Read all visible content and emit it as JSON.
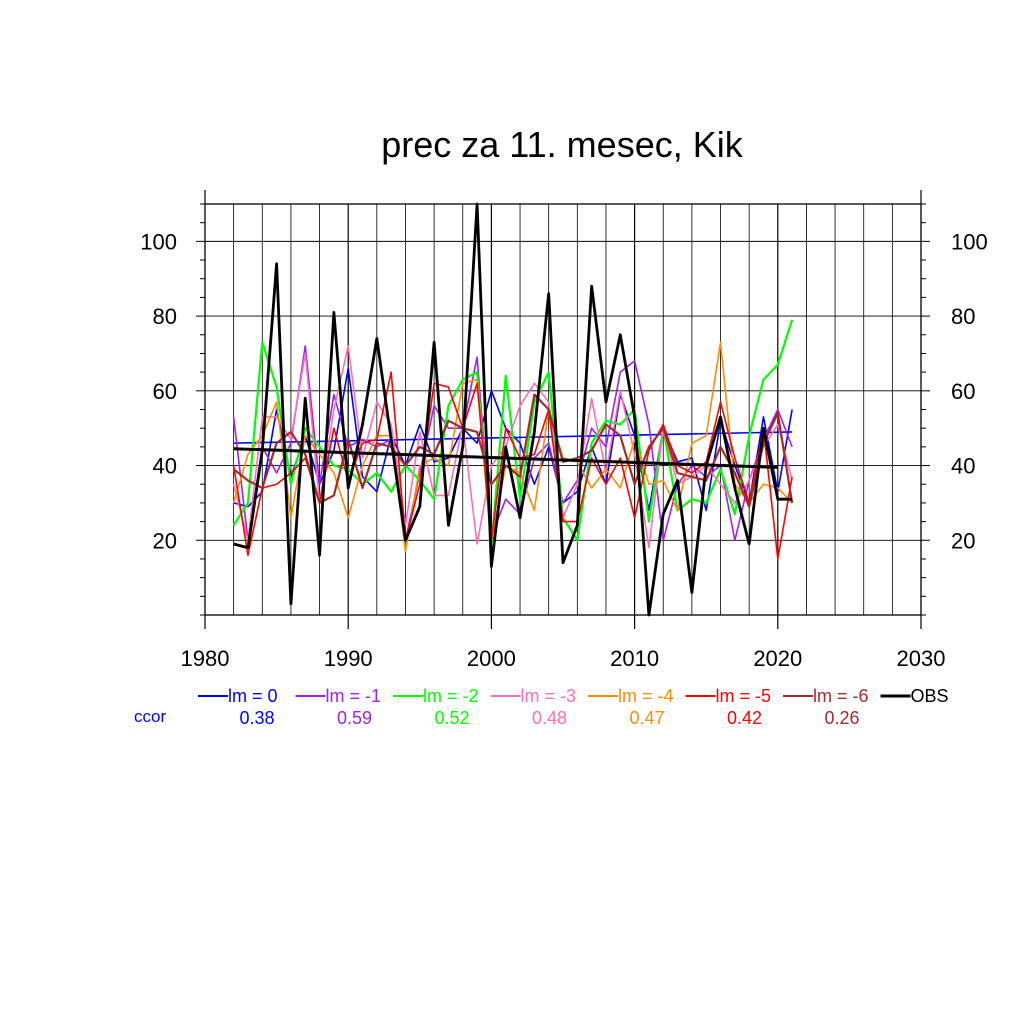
{
  "chart_data": {
    "type": "line",
    "title": "prec za 11. mesec, Kik",
    "xlabel": "",
    "ylabel": "",
    "xlim": [
      1980,
      2030
    ],
    "ylim": [
      0,
      110
    ],
    "x_ticks": [
      1980,
      1990,
      2000,
      2010,
      2020,
      2030
    ],
    "y_ticks": [
      20,
      40,
      60,
      80,
      100
    ],
    "grid": true,
    "legend_position": "bottom",
    "ccor_label": "ccor",
    "years": [
      1982,
      1983,
      1984,
      1985,
      1986,
      1987,
      1988,
      1989,
      1990,
      1991,
      1992,
      1993,
      1994,
      1995,
      1996,
      1997,
      1998,
      1999,
      2000,
      2001,
      2002,
      2003,
      2004,
      2005,
      2006,
      2007,
      2008,
      2009,
      2010,
      2011,
      2012,
      2013,
      2014,
      2015,
      2016,
      2017,
      2018,
      2019,
      2020,
      2021
    ],
    "series": [
      {
        "name": "lm = 0",
        "ccor": "0.38",
        "color": "#0000ff",
        "width": 1.6,
        "values": [
          30,
          29,
          33,
          55,
          37,
          48,
          35,
          44,
          66,
          37,
          33,
          48,
          40,
          51,
          41,
          42,
          50,
          46,
          60,
          50,
          46,
          35,
          45,
          30,
          33,
          45,
          35,
          59,
          48,
          28,
          50,
          41,
          42,
          28,
          52,
          40,
          30,
          53,
          33,
          55
        ],
        "trend": [
          46,
          49
        ]
      },
      {
        "name": "lm = -1",
        "ccor": "0.59",
        "color": "#a020f0",
        "width": 1.6,
        "values": [
          53,
          20,
          45,
          38,
          46,
          72,
          35,
          59,
          45,
          47,
          45,
          47,
          20,
          38,
          56,
          50,
          50,
          69,
          21,
          31,
          27,
          42,
          46,
          30,
          36,
          50,
          45,
          65,
          68,
          51,
          20,
          35,
          40,
          37,
          40,
          20,
          36,
          47,
          55,
          45
        ]
      },
      {
        "name": "lm = -2",
        "ccor": "0.52",
        "color": "#00ff00",
        "width": 2.2,
        "values": [
          24,
          30,
          73,
          61,
          35,
          50,
          45,
          40,
          39,
          35,
          38,
          33,
          40,
          36,
          31,
          56,
          63,
          65,
          18,
          64,
          31,
          57,
          65,
          26,
          20,
          46,
          52,
          51,
          55,
          25,
          50,
          28,
          31,
          30,
          39,
          27,
          48,
          63,
          67,
          79
        ]
      },
      {
        "name": "lm = -3",
        "ccor": "0.48",
        "color": "#ff6eb4",
        "width": 1.6,
        "values": [
          35,
          20,
          53,
          53,
          47,
          70,
          30,
          55,
          72,
          42,
          57,
          51,
          24,
          49,
          32,
          32,
          51,
          19,
          40,
          45,
          56,
          62,
          57,
          26,
          35,
          58,
          38,
          60,
          43,
          18,
          50,
          35,
          37,
          40,
          35,
          30,
          36,
          45,
          51,
          36
        ]
      },
      {
        "name": "lm = -4",
        "ccor": "0.47",
        "color": "#ff8c00",
        "width": 1.6,
        "values": [
          30,
          43,
          48,
          57,
          26,
          48,
          43,
          38,
          26,
          40,
          48,
          48,
          17,
          40,
          42,
          40,
          62,
          63,
          20,
          40,
          38,
          28,
          55,
          42,
          41,
          34,
          39,
          34,
          47,
          35,
          36,
          28,
          46,
          48,
          73,
          35,
          30,
          35,
          34,
          30
        ]
      },
      {
        "name": "lm = -5",
        "ccor": "0.42",
        "color": "#ff0000",
        "width": 1.6,
        "values": [
          40,
          16,
          34,
          35,
          38,
          42,
          30,
          50,
          36,
          46,
          47,
          65,
          20,
          35,
          62,
          61,
          50,
          62,
          20,
          50,
          42,
          43,
          55,
          25,
          25,
          42,
          35,
          42,
          26,
          44,
          51,
          40,
          38,
          41,
          57,
          42,
          30,
          50,
          15,
          37
        ]
      },
      {
        "name": "lm = -6",
        "ccor": "0.26",
        "color": "#a52a2a",
        "width": 2.2,
        "values": [
          39,
          36,
          34,
          46,
          49,
          43,
          30,
          32,
          47,
          34,
          46,
          45,
          40,
          45,
          43,
          52,
          50,
          49,
          35,
          40,
          37,
          59,
          55,
          41,
          42,
          44,
          51,
          48,
          35,
          45,
          50,
          38,
          37,
          36,
          45,
          38,
          29,
          46,
          54,
          30
        ]
      },
      {
        "name": "OBS",
        "ccor": "",
        "color": "#000000",
        "width": 2.8,
        "values": [
          19,
          18,
          44,
          94,
          3,
          58,
          16,
          81,
          34,
          51,
          74,
          47,
          20,
          29,
          73,
          24,
          45,
          110,
          13,
          45,
          26,
          49,
          86,
          14,
          24,
          88,
          57,
          75,
          53,
          0,
          27,
          36,
          6,
          40,
          53,
          34,
          19,
          50,
          31,
          31
        ],
        "trend": [
          44.5,
          39.5
        ]
      }
    ]
  }
}
